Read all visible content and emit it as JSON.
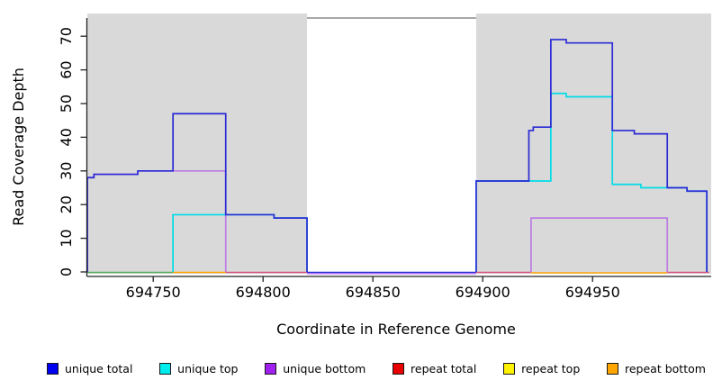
{
  "chart_data": {
    "type": "line",
    "step": true,
    "title": "",
    "xlabel": "Coordinate in Reference Genome",
    "ylabel": "Read Coverage Depth",
    "xlim": [
      694720,
      695004
    ],
    "ylim": [
      0,
      70
    ],
    "x_ticks": [
      694750,
      694800,
      694850,
      694900,
      694950
    ],
    "y_ticks": [
      0,
      10,
      20,
      30,
      40,
      50,
      60,
      70
    ],
    "grid": false,
    "legend_position": "bottom",
    "plot_bg": "#ffffff",
    "shade_color": "#d9d9d9",
    "shaded_regions": [
      {
        "from": 694720,
        "to": 694820
      },
      {
        "from": 694897,
        "to": 695004
      }
    ],
    "gap_top_border": {
      "from": 694820,
      "to": 694897,
      "color": "#8a8a8a"
    },
    "series": [
      {
        "name": "unique total",
        "color": "#2b2bd5",
        "steps": [
          [
            694720,
            694723,
            28
          ],
          [
            694723,
            694743,
            29
          ],
          [
            694743,
            694759,
            30
          ],
          [
            694759,
            694783,
            47
          ],
          [
            694783,
            694805,
            17
          ],
          [
            694805,
            694820,
            16
          ],
          [
            694820,
            694897,
            0
          ],
          [
            694897,
            694921,
            27
          ],
          [
            694921,
            694923,
            42
          ],
          [
            694923,
            694931,
            43
          ],
          [
            694931,
            694938,
            69
          ],
          [
            694938,
            694959,
            68
          ],
          [
            694959,
            694969,
            42
          ],
          [
            694969,
            694984,
            41
          ],
          [
            694984,
            694993,
            25
          ],
          [
            694993,
            695002,
            24
          ],
          [
            695002,
            695004,
            0
          ]
        ]
      },
      {
        "name": "unique top",
        "color": "#00dce6",
        "steps": [
          [
            694720,
            694759,
            0
          ],
          [
            694759,
            694805,
            17
          ],
          [
            694805,
            694820,
            16
          ],
          [
            694820,
            694897,
            0
          ],
          [
            694897,
            694931,
            27
          ],
          [
            694931,
            694938,
            53
          ],
          [
            694938,
            694959,
            52
          ],
          [
            694959,
            694972,
            26
          ],
          [
            694972,
            694993,
            25
          ],
          [
            694993,
            695002,
            24
          ],
          [
            695002,
            695004,
            0
          ]
        ]
      },
      {
        "name": "unique bottom",
        "color": "rgba(160,32,240,0.5)",
        "steps": [
          [
            694720,
            694723,
            28
          ],
          [
            694723,
            694743,
            29
          ],
          [
            694743,
            694783,
            30
          ],
          [
            694783,
            694922,
            0
          ],
          [
            694922,
            694984,
            16
          ],
          [
            694984,
            695004,
            0
          ]
        ]
      },
      {
        "name": "repeat total",
        "color": "#e00000",
        "steps": [
          [
            694720,
            695004,
            0
          ]
        ]
      },
      {
        "name": "repeat top",
        "color": "#fff200",
        "steps": [
          [
            694720,
            695004,
            0
          ]
        ]
      },
      {
        "name": "repeat bottom",
        "color": "#ffa500",
        "steps": [
          [
            694720,
            695004,
            0
          ]
        ]
      }
    ],
    "baseline_segments": [
      {
        "from": 694720,
        "to": 694759,
        "color": "#57ad57",
        "dy": 0.5
      },
      {
        "from": 694759,
        "to": 694783,
        "color": "#ffa500",
        "dy": 0.5
      },
      {
        "from": 694783,
        "to": 694820,
        "color": "#d85480",
        "dy": 0.5
      },
      {
        "from": 694820,
        "to": 694897,
        "color": "rgba(160,32,240,0.55)",
        "dy": 2
      },
      {
        "from": 694820,
        "to": 694897,
        "color": "#2b2bd5",
        "dy": 0.5
      },
      {
        "from": 694897,
        "to": 694922,
        "color": "#d85480",
        "dy": 0.5
      },
      {
        "from": 694922,
        "to": 694984,
        "color": "#ffa500",
        "dy": 1
      },
      {
        "from": 694984,
        "to": 695003,
        "color": "#d85480",
        "dy": 0.5
      }
    ]
  },
  "legend": {
    "items": [
      {
        "label": "unique total",
        "color": "#0000f0"
      },
      {
        "label": "unique top",
        "color": "#00eded"
      },
      {
        "label": "unique bottom",
        "color": "#a020f0"
      },
      {
        "label": "repeat total",
        "color": "#e80000"
      },
      {
        "label": "repeat top",
        "color": "#fff200"
      },
      {
        "label": "repeat bottom",
        "color": "#ffa500"
      }
    ]
  }
}
